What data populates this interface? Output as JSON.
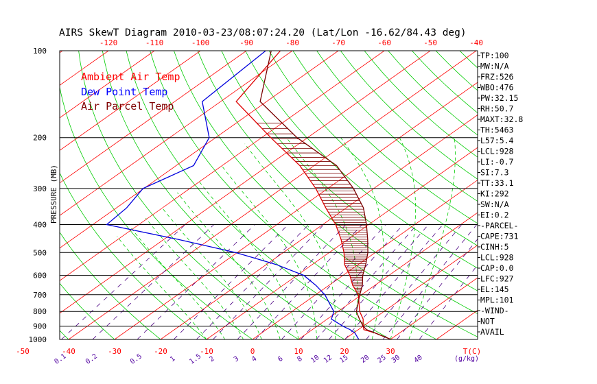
{
  "title": "AIRS SkewT Diagram 2010-03-23/08:07:24.20 (Lat/Lon -16.62/84.43 deg)",
  "ylabel": "PRESSURE (MB)",
  "legend": [
    {
      "label": "Ambient Air Temp",
      "color": "#ff0000"
    },
    {
      "label": "Dew Point Temp",
      "color": "#0000ff"
    },
    {
      "label": "Air Parcel Temp",
      "color": "#7f0000"
    }
  ],
  "colors": {
    "ambient": "#dd0000",
    "dewpoint": "#0000dd",
    "parcel": "#7a0000",
    "isotherm": "#ff0000",
    "dry_adiabat": "#00cc00",
    "moist_adiabat": "#00cc00",
    "mixing_ratio": "#4b0082",
    "isobar": "#000000",
    "axis_text": "#ff0000",
    "mixing_text": "#5000a0"
  },
  "indices": [
    "TP:100",
    "MW:N/A",
    "FRZ:526",
    "WBO:476",
    "PW:32.15",
    "RH:50.7",
    "MAXT:32.8",
    "TH:5463",
    "L57:5.4",
    "LCL:928",
    "LI:-0.7",
    "SI:7.3",
    "TT:33.1",
    "KI:292",
    "SW:N/A",
    "EI:0.2",
    "-PARCEL-",
    "CAPE:731",
    "CINH:5",
    "LCL:928",
    "CAP:0.0",
    "LFC:927",
    "EL:145",
    "MPL:101",
    "-WIND-",
    "NOT",
    "AVAIL"
  ],
  "chart_data": {
    "type": "line",
    "title": "AIRS SkewT Diagram 2010-03-23/08:07:24.20 (Lat/Lon -16.62/84.43 deg)",
    "ylabel": "PRESSURE (MB)",
    "xlabel": "T(C)",
    "y_scale": "log",
    "pressure_ticks": [
      100,
      200,
      300,
      400,
      500,
      600,
      700,
      800,
      900,
      1000
    ],
    "bottom_temperature_ticks": [
      -50,
      -40,
      -30,
      -20,
      -10,
      0,
      10,
      20,
      30
    ],
    "top_temperature_ticks": [
      -120,
      -110,
      -100,
      -90,
      -80,
      -70,
      -60,
      -50,
      -40
    ],
    "mixing_ratio_ticks": [
      "0.1",
      "0.2",
      "0.5",
      "1",
      "1.5",
      "2",
      "3",
      "4",
      "6",
      "8",
      "10",
      "12",
      "15",
      "20",
      "25",
      "30",
      "40"
    ],
    "mixing_ratio_unit": "(g/kg)",
    "series": [
      {
        "name": "Ambient Air Temp",
        "points": [
          [
            100,
            -82.6
          ],
          [
            150,
            -76.6
          ],
          [
            200,
            -58.0
          ],
          [
            250,
            -43.1
          ],
          [
            300,
            -32.6
          ],
          [
            350,
            -24.5
          ],
          [
            400,
            -17.2
          ],
          [
            450,
            -11.5
          ],
          [
            500,
            -6.8
          ],
          [
            550,
            -3.0
          ],
          [
            600,
            1.5
          ],
          [
            650,
            5.2
          ],
          [
            700,
            9.3
          ],
          [
            800,
            14.7
          ],
          [
            850,
            17.8
          ],
          [
            900,
            20.0
          ],
          [
            925,
            21.2
          ],
          [
            950,
            24.7
          ],
          [
            1000,
            30.1
          ]
        ]
      },
      {
        "name": "Dew Point Temp",
        "points": [
          [
            100,
            -85.8
          ],
          [
            150,
            -84.0
          ],
          [
            200,
            -71.4
          ],
          [
            250,
            -66.2
          ],
          [
            300,
            -70.2
          ],
          [
            350,
            -67.8
          ],
          [
            400,
            -67.0
          ],
          [
            450,
            -47.0
          ],
          [
            500,
            -30.4
          ],
          [
            550,
            -17.9
          ],
          [
            600,
            -8.5
          ],
          [
            650,
            -2.8
          ],
          [
            700,
            2.0
          ],
          [
            800,
            9.1
          ],
          [
            850,
            10.9
          ],
          [
            900,
            15.6
          ],
          [
            925,
            18.2
          ],
          [
            950,
            20.3
          ],
          [
            1000,
            23.1
          ]
        ]
      },
      {
        "name": "Air Parcel Temp",
        "points": [
          [
            100,
            -84.6
          ],
          [
            150,
            -71.4
          ],
          [
            200,
            -52.3
          ],
          [
            250,
            -35.1
          ],
          [
            300,
            -24.4
          ],
          [
            350,
            -16.3
          ],
          [
            400,
            -10.5
          ],
          [
            450,
            -5.7
          ],
          [
            500,
            -1.6
          ],
          [
            550,
            1.6
          ],
          [
            600,
            4.3
          ],
          [
            650,
            7.3
          ],
          [
            700,
            9.6
          ],
          [
            800,
            14.0
          ],
          [
            850,
            17.0
          ],
          [
            900,
            20.0
          ],
          [
            925,
            21.8
          ],
          [
            950,
            24.7
          ],
          [
            1000,
            30.1
          ]
        ]
      }
    ]
  }
}
